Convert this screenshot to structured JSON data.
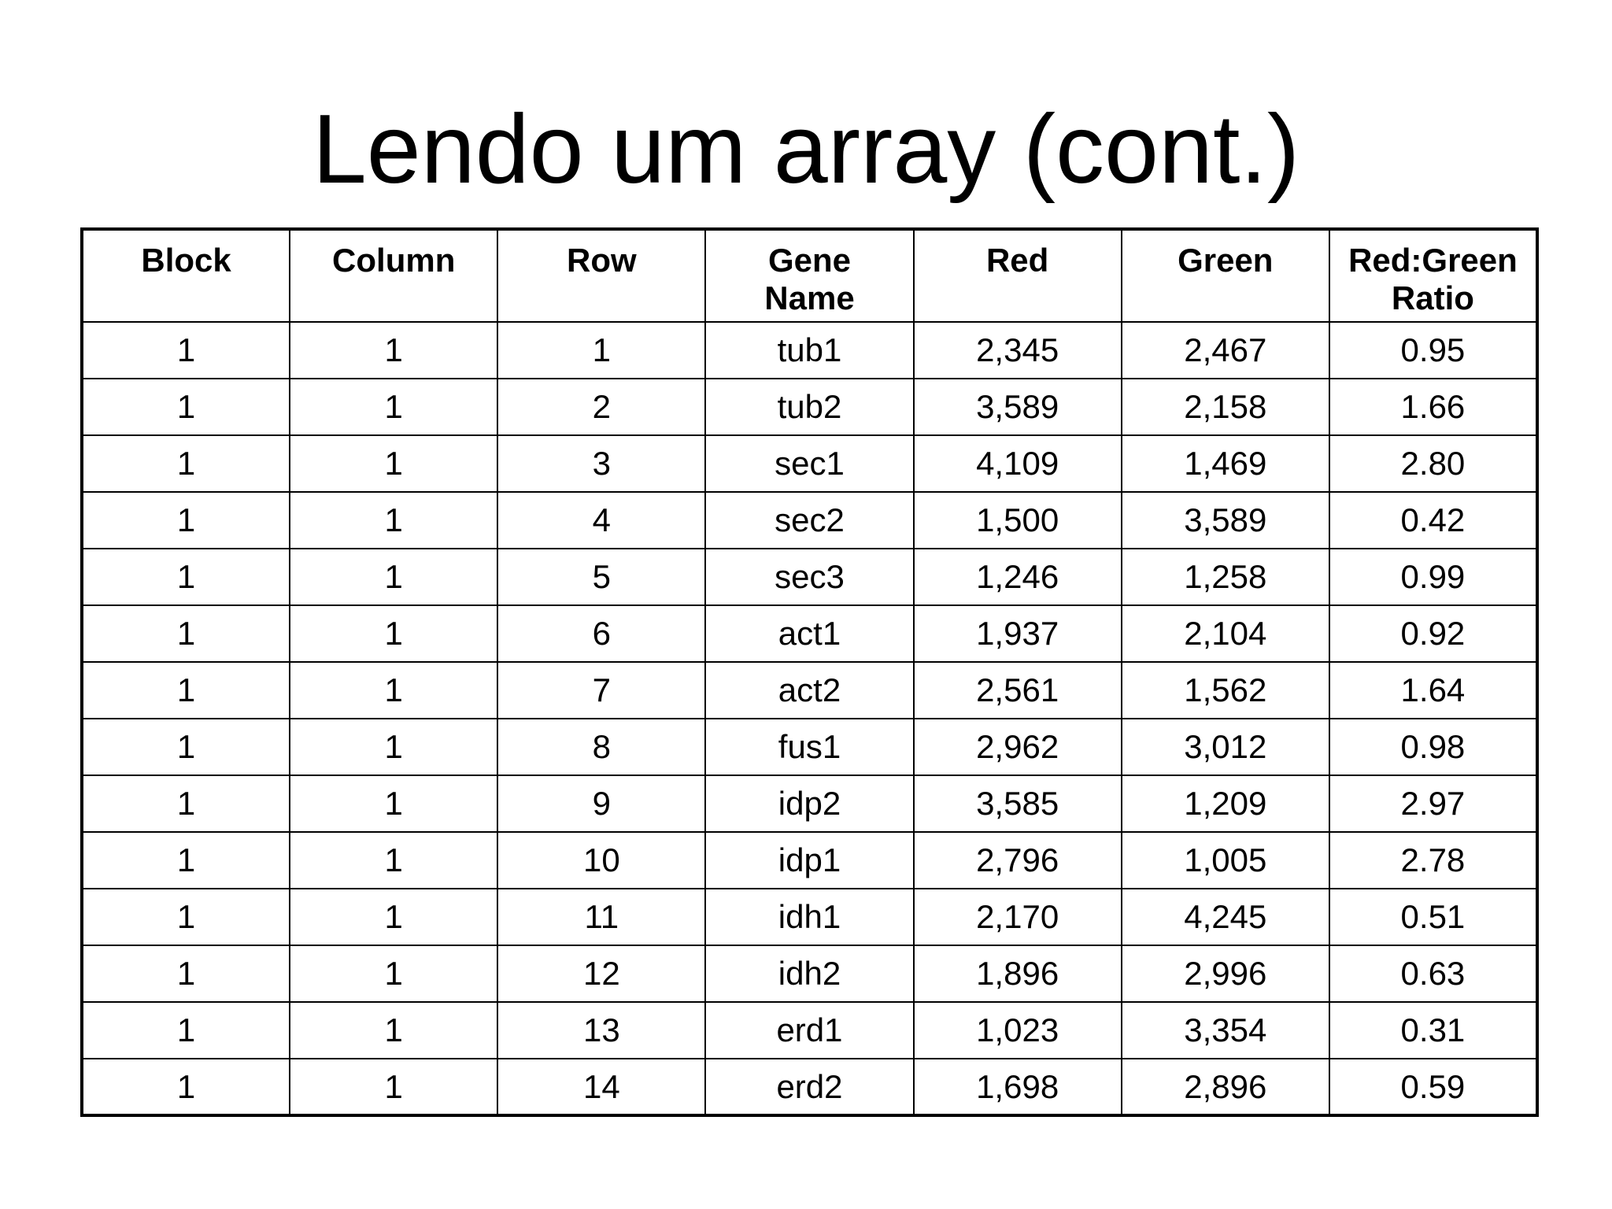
{
  "title": "Lendo um array (cont.)",
  "table": {
    "headers": [
      [
        "Block"
      ],
      [
        "Column"
      ],
      [
        "Row"
      ],
      [
        "Gene",
        "Name"
      ],
      [
        "Red"
      ],
      [
        "Green"
      ],
      [
        "Red:Green",
        "Ratio"
      ]
    ],
    "rows": [
      [
        "1",
        "1",
        "1",
        "tub1",
        "2,345",
        "2,467",
        "0.95"
      ],
      [
        "1",
        "1",
        "2",
        "tub2",
        "3,589",
        "2,158",
        "1.66"
      ],
      [
        "1",
        "1",
        "3",
        "sec1",
        "4,109",
        "1,469",
        "2.80"
      ],
      [
        "1",
        "1",
        "4",
        "sec2",
        "1,500",
        "3,589",
        "0.42"
      ],
      [
        "1",
        "1",
        "5",
        "sec3",
        "1,246",
        "1,258",
        "0.99"
      ],
      [
        "1",
        "1",
        "6",
        "act1",
        "1,937",
        "2,104",
        "0.92"
      ],
      [
        "1",
        "1",
        "7",
        "act2",
        "2,561",
        "1,562",
        "1.64"
      ],
      [
        "1",
        "1",
        "8",
        "fus1",
        "2,962",
        "3,012",
        "0.98"
      ],
      [
        "1",
        "1",
        "9",
        "idp2",
        "3,585",
        "1,209",
        "2.97"
      ],
      [
        "1",
        "1",
        "10",
        "idp1",
        "2,796",
        "1,005",
        "2.78"
      ],
      [
        "1",
        "1",
        "11",
        "idh1",
        "2,170",
        "4,245",
        "0.51"
      ],
      [
        "1",
        "1",
        "12",
        "idh2",
        "1,896",
        "2,996",
        "0.63"
      ],
      [
        "1",
        "1",
        "13",
        "erd1",
        "1,023",
        "3,354",
        "0.31"
      ],
      [
        "1",
        "1",
        "14",
        "erd2",
        "1,698",
        "2,896",
        "0.59"
      ]
    ]
  }
}
